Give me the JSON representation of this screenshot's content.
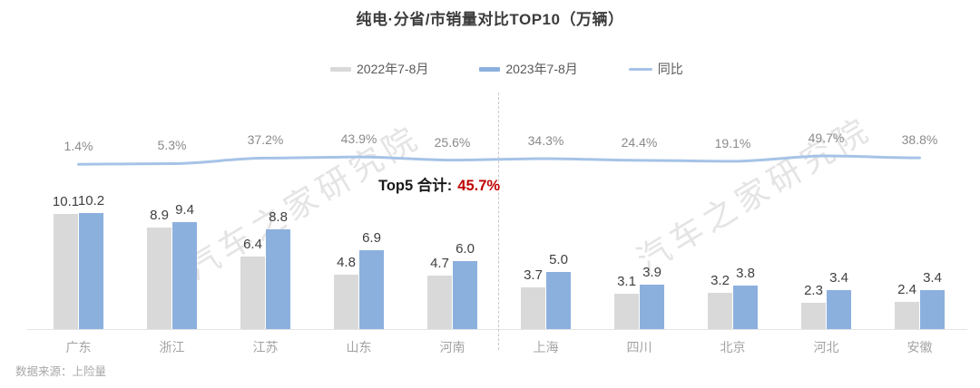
{
  "title": "纯电·分省/市销量对比TOP10（万辆）",
  "legend": [
    {
      "label": "2022年7-8月",
      "type": "bar",
      "color": "#d9d9d9"
    },
    {
      "label": "2023年7-8月",
      "type": "bar",
      "color": "#8cb0de"
    },
    {
      "label": "同比",
      "type": "line",
      "color": "#a6c3e7"
    }
  ],
  "annotation": {
    "label": "Top5 合计:",
    "value": "45.7%",
    "value_color": "#c00000"
  },
  "source": "数据来源：上险量",
  "chart_data": {
    "type": "bar",
    "title": "纯电·分省/市销量对比TOP10（万辆）",
    "categories": [
      "广东",
      "浙江",
      "江苏",
      "山东",
      "河南",
      "上海",
      "四川",
      "北京",
      "河北",
      "安徽"
    ],
    "series": [
      {
        "name": "2022年7-8月",
        "values": [
          10.1,
          8.9,
          6.4,
          4.8,
          4.7,
          3.7,
          3.1,
          3.2,
          2.3,
          2.4
        ],
        "color": "#d9d9d9"
      },
      {
        "name": "2023年7-8月",
        "values": [
          10.2,
          9.4,
          8.8,
          6.9,
          6.0,
          5.0,
          3.9,
          3.8,
          3.4,
          3.4
        ],
        "color": "#8cb0de"
      }
    ],
    "line_series": {
      "name": "同比",
      "values_pct": [
        1.4,
        5.3,
        37.2,
        43.9,
        25.6,
        34.3,
        24.4,
        19.1,
        49.7,
        38.8
      ],
      "color": "#a6c3e7"
    },
    "divider_after_index": 4,
    "ylim": [
      0,
      11
    ],
    "grid": false,
    "legend_position": "top",
    "watermark": "汽车之家研究院"
  }
}
